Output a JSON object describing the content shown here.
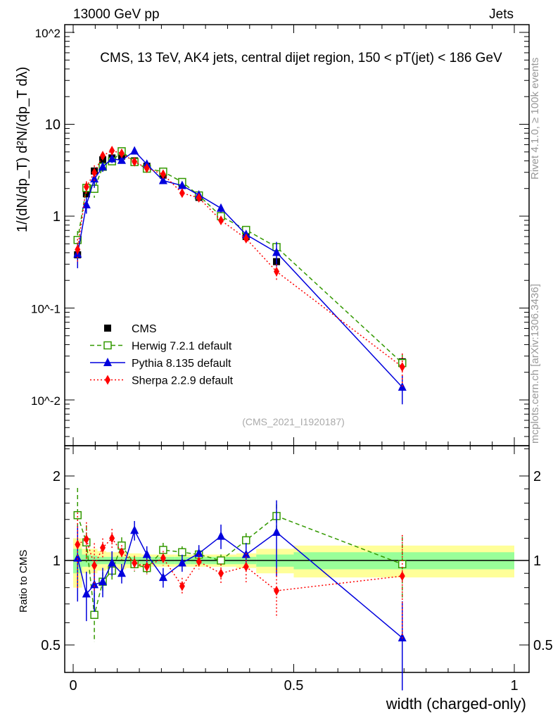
{
  "header": {
    "left": "13000 GeV pp",
    "right": "Jets"
  },
  "side": {
    "rivet": "Rivet 4.1.0, ≥ 100k events",
    "mcplots": "mcplots.cern.ch [arXiv:1306.3436]"
  },
  "chart_data": {
    "type": "line",
    "title": "CMS, 13 TeV, AK4 jets, central dijet region, 150 < p_T^{jet} < 186 GeV",
    "analysis": "(CMS_2021_I1920187)",
    "xlabel": "width (charged-only)",
    "ylabel": "1/(dN/dp_T) d²N/(dp_T dλ)",
    "ratio_ylabel": "Ratio to CMS",
    "xlim": [
      -0.02,
      1.03
    ],
    "ylim_log10": [
      -2.49,
      2.09
    ],
    "ratio_ylim": [
      0.4,
      2.56
    ],
    "x_ticks": [
      "0",
      "0.5",
      "1"
    ],
    "y_ticks": [
      "10^-2",
      "10^-1",
      "1",
      "10",
      "10^2"
    ],
    "ratio_ticks": [
      "0.5",
      "1",
      "2"
    ],
    "legend_position": "middle-left",
    "bin_edges": [
      0,
      0.02,
      0.04,
      0.055,
      0.075,
      0.1,
      0.12,
      0.155,
      0.18,
      0.23,
      0.265,
      0.3,
      0.37,
      0.415,
      0.5,
      1.0
    ],
    "x": [
      0.01,
      0.03,
      0.048,
      0.067,
      0.088,
      0.11,
      0.139,
      0.167,
      0.204,
      0.247,
      0.285,
      0.335,
      0.392,
      0.461,
      0.746
    ],
    "data": {
      "name": "CMS",
      "values": [
        0.38,
        1.75,
        3.1,
        4.1,
        4.3,
        4.5,
        4.0,
        3.5,
        2.8,
        2.2,
        1.6,
        1.0,
        0.6,
        0.32,
        0.026
      ],
      "band_yellow": [
        0.2,
        0.1,
        0.1,
        0.08,
        0.07,
        0.07,
        0.06,
        0.05,
        0.05,
        0.05,
        0.05,
        0.05,
        0.06,
        0.1,
        0.13
      ],
      "band_green": [
        0.1,
        0.05,
        0.04,
        0.03,
        0.03,
        0.03,
        0.03,
        0.03,
        0.03,
        0.03,
        0.03,
        0.03,
        0.03,
        0.05,
        0.07
      ]
    },
    "series": [
      {
        "name": "Herwig 7.2.1 default",
        "color": "#339900",
        "marker": "open-square",
        "dash": "6,4",
        "ratio": [
          1.45,
          1.16,
          0.64,
          0.84,
          0.92,
          1.13,
          0.97,
          0.94,
          1.09,
          1.07,
          1.05,
          1.0,
          1.18,
          1.44,
          0.97
        ],
        "rel_err": [
          0.25,
          0.15,
          0.2,
          0.08,
          0.08,
          0.07,
          0.06,
          0.05,
          0.06,
          0.05,
          0.05,
          0.05,
          0.06,
          0.1,
          0.25
        ]
      },
      {
        "name": "Pythia 8.135 default",
        "color": "#0000dd",
        "marker": "triangle",
        "dash": "",
        "ratio": [
          1.02,
          0.76,
          0.82,
          0.84,
          0.98,
          0.9,
          1.28,
          1.05,
          0.87,
          0.98,
          1.06,
          1.22,
          1.05,
          1.26,
          0.53
        ],
        "rel_err": [
          0.3,
          0.2,
          0.2,
          0.12,
          0.1,
          0.08,
          0.08,
          0.07,
          0.08,
          0.07,
          0.07,
          0.1,
          0.1,
          0.3,
          0.35
        ]
      },
      {
        "name": "Sherpa 2.2.9 default",
        "color": "#ff0000",
        "marker": "diamond",
        "dash": "2,3",
        "ratio": [
          1.14,
          1.19,
          0.96,
          1.11,
          1.2,
          1.07,
          0.98,
          0.95,
          1.02,
          0.81,
          0.99,
          0.9,
          0.95,
          0.78,
          0.88
        ],
        "rel_err": [
          0.3,
          0.15,
          0.2,
          0.08,
          0.08,
          0.06,
          0.06,
          0.06,
          0.06,
          0.07,
          0.06,
          0.08,
          0.12,
          0.2,
          0.4
        ]
      }
    ]
  }
}
